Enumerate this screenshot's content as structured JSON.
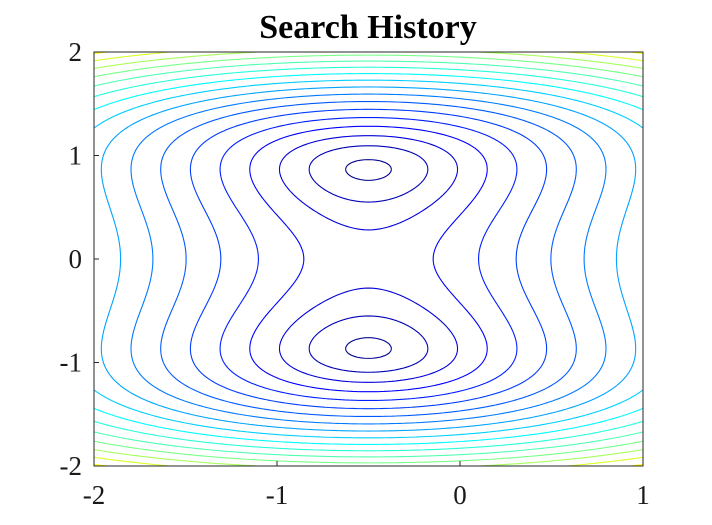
{
  "chart_data": {
    "type": "contour",
    "title": "Search History",
    "xlabel": "",
    "ylabel": "",
    "xlim": [
      -2,
      1
    ],
    "ylim": [
      -2,
      2
    ],
    "x_ticks": [
      "-2",
      "-1",
      "0",
      "1"
    ],
    "y_ticks": [
      "2",
      "1",
      "0",
      "-1",
      "-2"
    ],
    "grid": false,
    "colormap": [
      "#00008f",
      "#0000ff",
      "#0080ff",
      "#00ffff",
      "#80ff80",
      "#ffff00",
      "#ff8000",
      "#ff0000",
      "#800000"
    ],
    "function": {
      "minima": [
        [
          -0.5,
          0.866
        ],
        [
          -0.5,
          -0.866
        ]
      ],
      "saddle": [
        -0.5,
        0
      ],
      "levels": [
        0.03,
        0.2,
        0.45,
        0.8,
        1.25,
        1.8,
        2.45,
        3.2,
        4.05,
        5.0,
        6.05,
        7.2,
        8.45,
        9.8,
        11.25,
        12.8,
        14.45,
        16.2,
        18.05,
        20.0,
        22.05,
        24.2,
        26.45,
        28.8,
        31.25
      ]
    }
  }
}
